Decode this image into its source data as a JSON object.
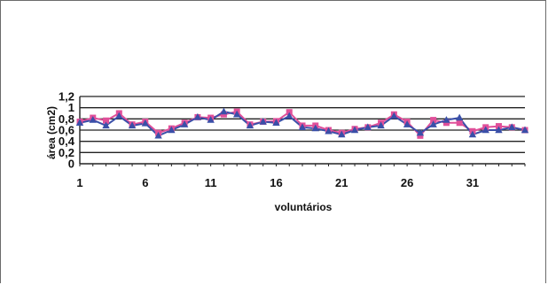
{
  "chart_data": {
    "type": "line",
    "title": "",
    "xlabel": "voluntários",
    "ylabel": "área (cm2)",
    "ylim": [
      0,
      1.2
    ],
    "grid": "horizontal",
    "legend": "none",
    "x": [
      1,
      2,
      3,
      4,
      5,
      6,
      7,
      8,
      9,
      10,
      11,
      12,
      13,
      14,
      15,
      16,
      17,
      18,
      19,
      20,
      21,
      22,
      23,
      24,
      25,
      26,
      27,
      28,
      29,
      30,
      31,
      32,
      33,
      34,
      35
    ],
    "x_tick_labels": [
      "1",
      "6",
      "11",
      "16",
      "21",
      "26",
      "31"
    ],
    "y_tick_labels": [
      "0",
      "0,2",
      "0,4",
      "0,6",
      "0,8",
      "1",
      "1,2"
    ],
    "series": [
      {
        "marker": "square",
        "color": "#e0509a",
        "values": [
          0.75,
          0.82,
          0.77,
          0.9,
          0.7,
          0.75,
          0.55,
          0.63,
          0.73,
          0.83,
          0.82,
          0.88,
          0.93,
          0.7,
          0.75,
          0.76,
          0.92,
          0.68,
          0.68,
          0.6,
          0.55,
          0.62,
          0.65,
          0.73,
          0.88,
          0.75,
          0.5,
          0.78,
          0.73,
          0.73,
          0.58,
          0.65,
          0.67,
          0.65,
          0.6
        ]
      },
      {
        "marker": "triangle",
        "color": "#3a4fa8",
        "values": [
          0.73,
          0.78,
          0.68,
          0.85,
          0.68,
          0.72,
          0.5,
          0.6,
          0.7,
          0.83,
          0.78,
          0.93,
          0.88,
          0.68,
          0.75,
          0.73,
          0.85,
          0.65,
          0.63,
          0.58,
          0.52,
          0.6,
          0.65,
          0.68,
          0.85,
          0.7,
          0.55,
          0.7,
          0.78,
          0.82,
          0.52,
          0.6,
          0.6,
          0.65,
          0.6
        ]
      }
    ]
  }
}
